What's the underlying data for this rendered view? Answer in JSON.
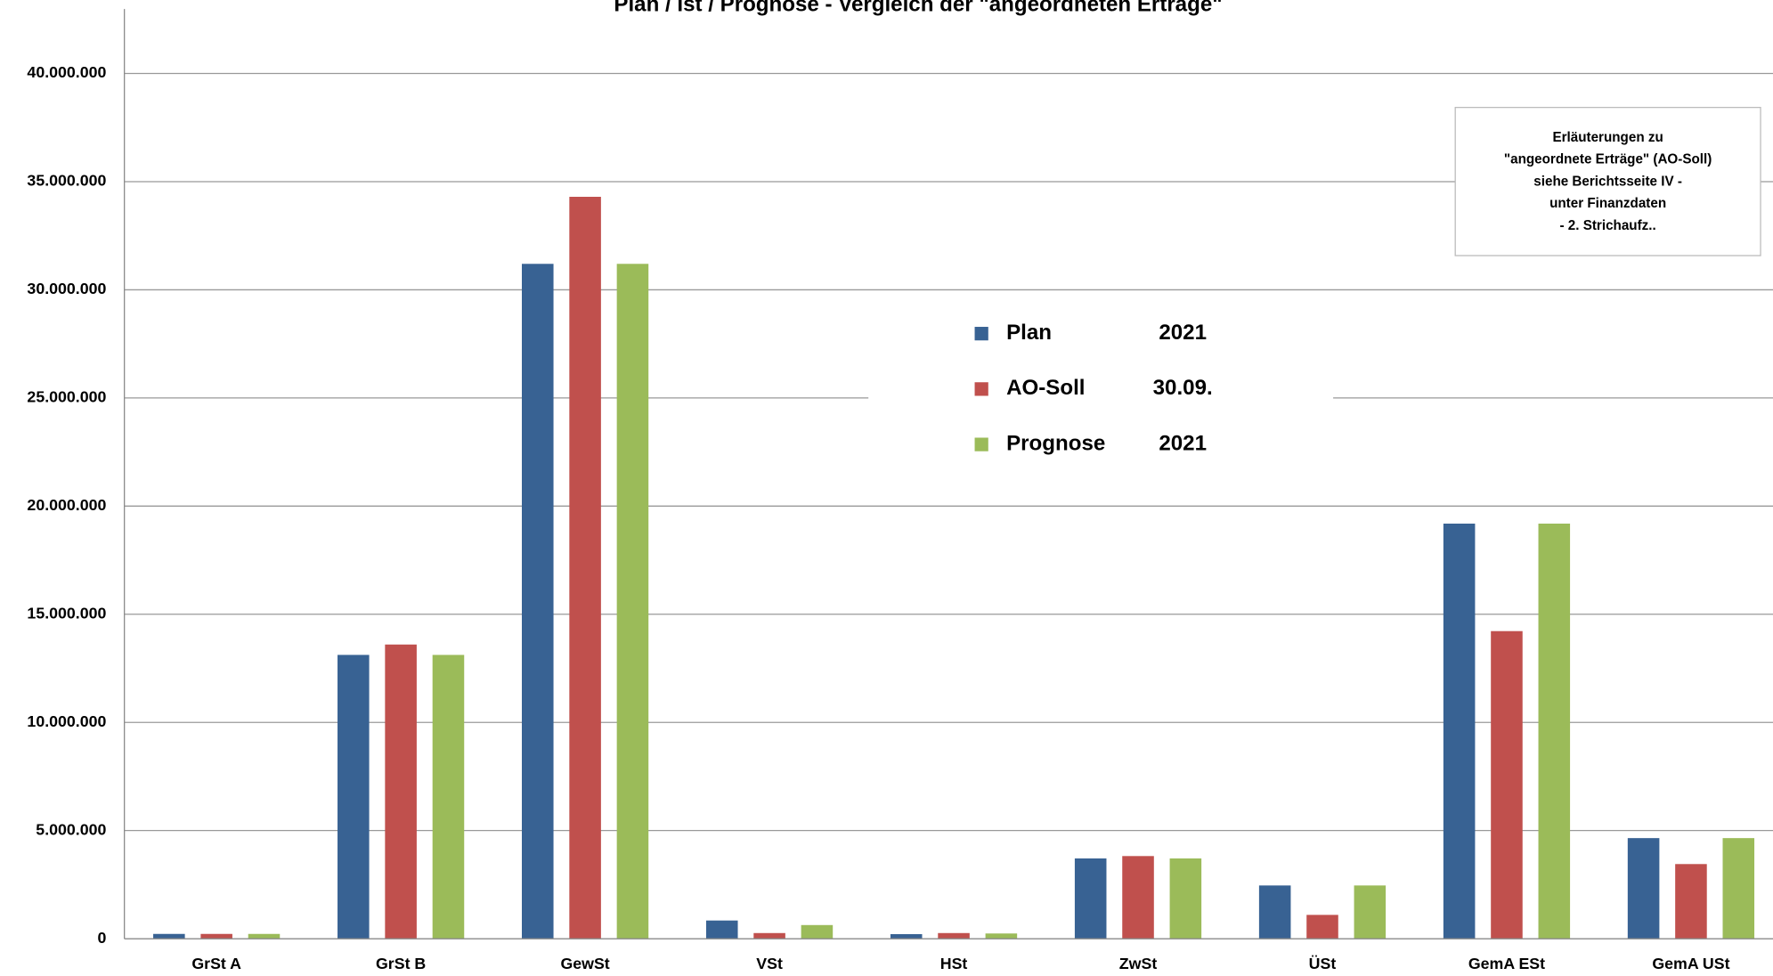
{
  "chart_data": {
    "type": "bar",
    "title": "Plan / Ist / Prognose - Vergleich der \"angeordneten Erträge\"",
    "categories": [
      "GrSt A",
      "GrSt B",
      "GewSt",
      "VSt",
      "HSt",
      "ZwSt",
      "ÜSt",
      "GemA ESt",
      "GemA USt"
    ],
    "series": [
      {
        "name": "Plan",
        "period": "2021",
        "color": "#386293",
        "values": [
          220000,
          13120000,
          31200000,
          840000,
          210000,
          3710000,
          2460000,
          19190000,
          4650000
        ]
      },
      {
        "name": "AO-Soll",
        "period": "30.09.",
        "color": "#c0504d",
        "values": [
          220000,
          13600000,
          34300000,
          260000,
          260000,
          3820000,
          1100000,
          14220000,
          3450000
        ]
      },
      {
        "name": "Prognose",
        "period": "2021",
        "color": "#9bbb59",
        "values": [
          220000,
          13120000,
          31200000,
          630000,
          240000,
          3710000,
          2460000,
          19190000,
          4650000
        ]
      }
    ],
    "ylim": [
      0,
      40000000
    ],
    "yticks": [
      0,
      {
        "value": 5000000,
        "label": "5.000.000"
      },
      {
        "value": 10000000,
        "label": "10.000.000"
      },
      {
        "value": 15000000,
        "label": "15.000.000"
      },
      {
        "value": 20000000,
        "label": "20.000.000"
      },
      {
        "value": 25000000,
        "label": "25.000.000"
      },
      {
        "value": 30000000,
        "label": "30.000.000"
      },
      {
        "value": 35000000,
        "label": "35.000.000"
      },
      {
        "value": 40000000,
        "label": "40.000.000"
      }
    ],
    "grid": true,
    "annotation": [
      "Erläuterungen zu",
      "\"angeordnete Erträge\" (AO-Soll)",
      "siehe  Berichtsseite IV -",
      "unter Finanzdaten",
      "- 2. Strichaufz.."
    ]
  }
}
